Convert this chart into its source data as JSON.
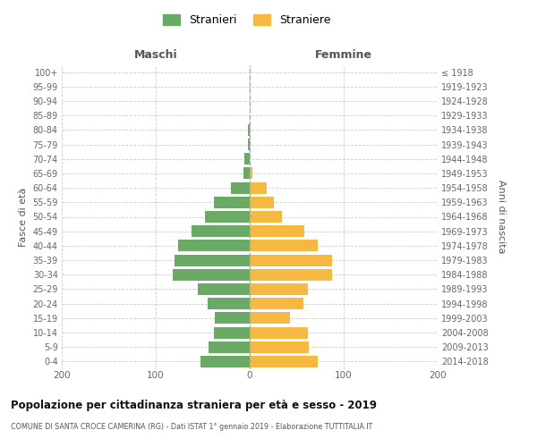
{
  "age_groups": [
    "0-4",
    "5-9",
    "10-14",
    "15-19",
    "20-24",
    "25-29",
    "30-34",
    "35-39",
    "40-44",
    "45-49",
    "50-54",
    "55-59",
    "60-64",
    "65-69",
    "70-74",
    "75-79",
    "80-84",
    "85-89",
    "90-94",
    "95-99",
    "100+"
  ],
  "birth_years": [
    "2014-2018",
    "2009-2013",
    "2004-2008",
    "1999-2003",
    "1994-1998",
    "1989-1993",
    "1984-1988",
    "1979-1983",
    "1974-1978",
    "1969-1973",
    "1964-1968",
    "1959-1963",
    "1954-1958",
    "1949-1953",
    "1944-1948",
    "1939-1943",
    "1934-1938",
    "1929-1933",
    "1924-1928",
    "1919-1923",
    "≤ 1918"
  ],
  "males": [
    52,
    44,
    38,
    37,
    45,
    55,
    82,
    80,
    76,
    62,
    48,
    38,
    20,
    7,
    6,
    2,
    2,
    0,
    0,
    0,
    0
  ],
  "females": [
    72,
    63,
    62,
    43,
    57,
    62,
    88,
    88,
    72,
    58,
    34,
    26,
    18,
    3,
    0,
    0,
    0,
    0,
    0,
    0,
    0
  ],
  "male_color": "#6aaa64",
  "female_color": "#f5b942",
  "background_color": "#ffffff",
  "grid_color": "#cccccc",
  "title": "Popolazione per cittadinanza straniera per età e sesso - 2019",
  "subtitle": "COMUNE DI SANTA CROCE CAMERINA (RG) - Dati ISTAT 1° gennaio 2019 - Elaborazione TUTTITALIA.IT",
  "legend_male": "Stranieri",
  "legend_female": "Straniere",
  "header_left": "Maschi",
  "header_right": "Femmine",
  "ylabel_left": "Fasce di età",
  "ylabel_right": "Anni di nascita",
  "xlim": 200
}
